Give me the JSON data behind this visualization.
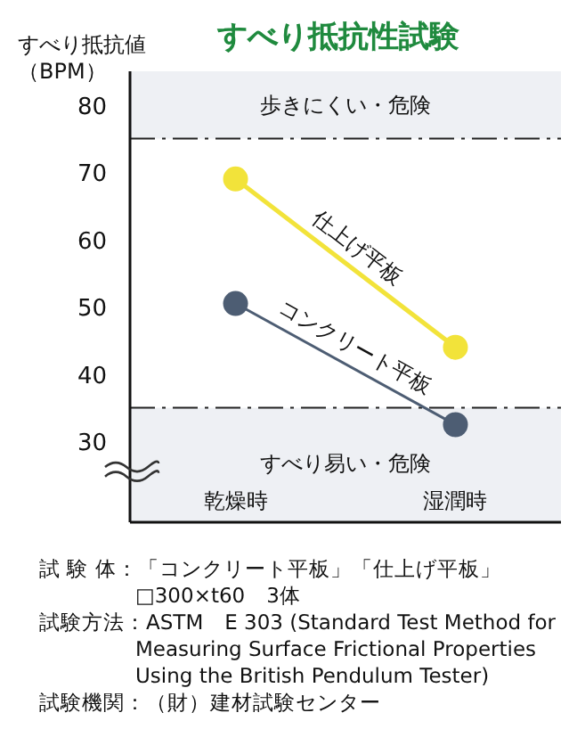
{
  "chart_data": {
    "type": "line",
    "title": "すべり抵抗性試験",
    "ylabel": "すべり抵抗値（BPM）",
    "categories": [
      "乾燥時",
      "湿潤時"
    ],
    "series": [
      {
        "name": "仕上げ平板",
        "color": "#f2e33a",
        "values": [
          69,
          44
        ]
      },
      {
        "name": "コンクリート平板",
        "color": "#4d5d73",
        "values": [
          50.5,
          32.5
        ]
      }
    ],
    "ylim": [
      18,
      85
    ],
    "yticks": [
      30,
      40,
      50,
      60,
      70,
      80
    ],
    "grid": false,
    "legend": false,
    "marker": "circle",
    "line_style": "solid",
    "ref_lines": [
      {
        "axis": "y",
        "value": 75,
        "color": "#222222",
        "line_style": "dashdot"
      },
      {
        "axis": "y",
        "value": 35,
        "color": "#222222",
        "line_style": "dashdot"
      }
    ],
    "bands": [
      {
        "axis": "y",
        "from": 75,
        "to": 85,
        "label": "歩きにくい・危険",
        "color": "#eef0f4"
      },
      {
        "axis": "y",
        "from": 18,
        "to": 35,
        "label": "すべり易い・危険",
        "color": "#eef0f4"
      }
    ],
    "annotations": [
      "試 験 体：「コンクリート平板」「仕上げ平板」",
      "□300×t60　3体",
      "試験方法：ASTM　E 303 (Standard Test Method for",
      "Measuring Surface Frictional Properties",
      "Using the British Pendulum Tester)",
      "試験機関：（財）建材試験センター"
    ]
  }
}
